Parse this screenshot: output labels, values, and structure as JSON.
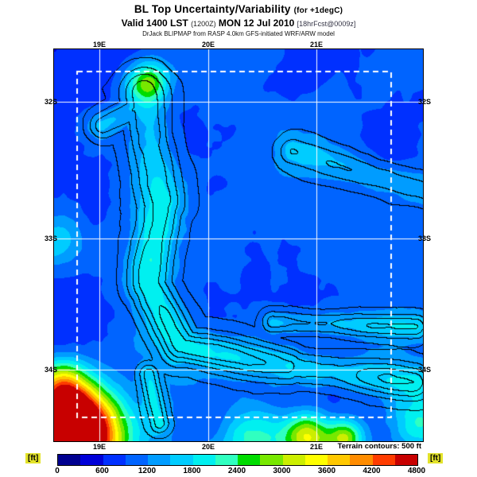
{
  "header": {
    "title": "BL Top Uncertainty/Variability",
    "title_note": "(for +1degC)",
    "valid_lst": "Valid 1400 LST",
    "valid_z": "(1200Z)",
    "valid_date": "MON 12 Jul 2010",
    "fcst": "[18hrFcst@0009z]",
    "model": "DrJack BLIPMAP from RASP 4.0km GFS-initiated WRF/ARW model"
  },
  "map": {
    "lat_labels": [
      "32S",
      "33S",
      "34S"
    ],
    "lon_labels": [
      "19E",
      "20E",
      "21E"
    ],
    "terrain_note": "Terrain contours: 500 ft",
    "grid_color": "#ffffff",
    "contour_color": "#000000",
    "domain_boundary": "dashed-white"
  },
  "scale": {
    "type": "colorbar",
    "unit": "[ft]",
    "min": 0,
    "max": 4800,
    "step": 600,
    "ticks": [
      0,
      600,
      1200,
      1800,
      2400,
      3000,
      3600,
      4200,
      4800
    ],
    "colors": [
      "#000090",
      "#0000d8",
      "#0030ff",
      "#0064ff",
      "#009cff",
      "#00ccff",
      "#00f0f0",
      "#30ffc0",
      "#00dc00",
      "#78e800",
      "#ccee00",
      "#ffff00",
      "#ffc800",
      "#ff8c00",
      "#ff3c00",
      "#c80000"
    ]
  }
}
